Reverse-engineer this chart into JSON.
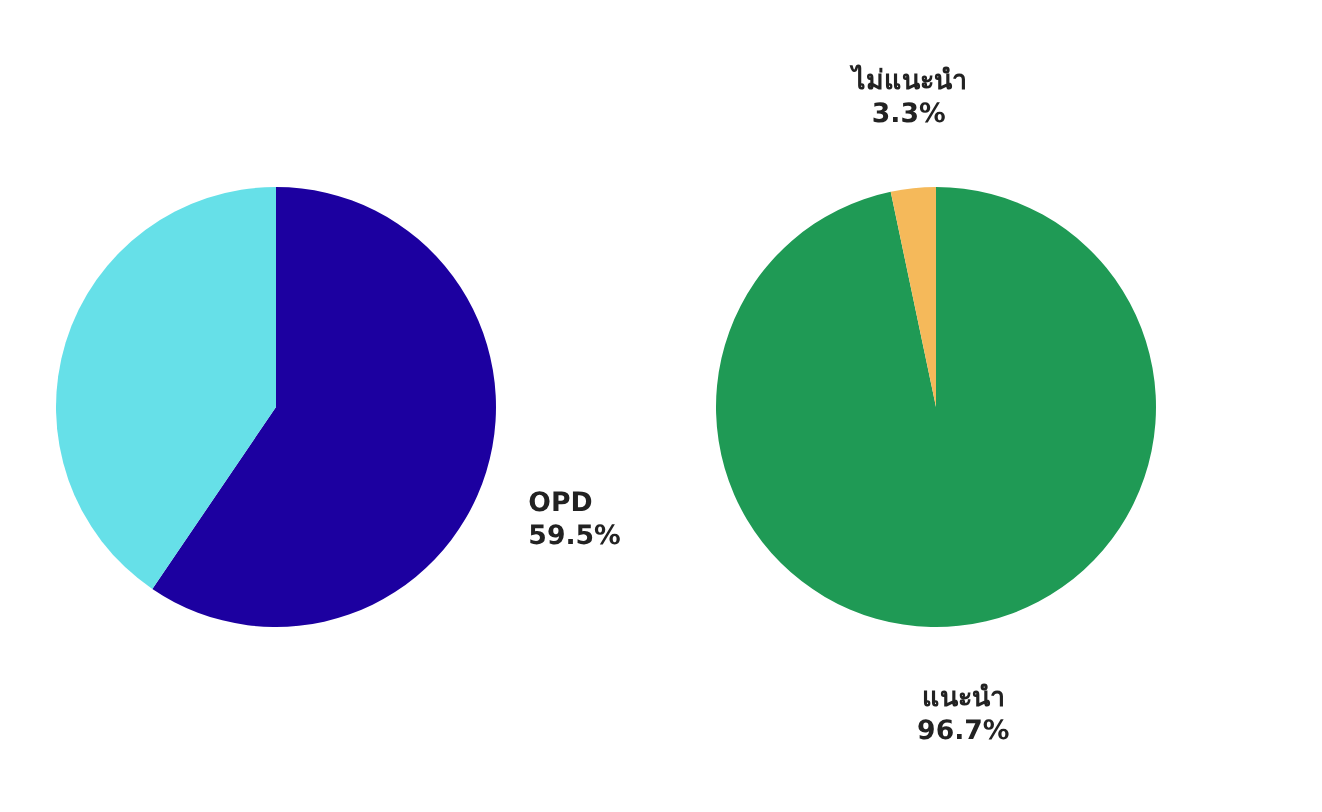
{
  "chart_data": [
    {
      "type": "pie",
      "categories": [
        "OPD",
        null
      ],
      "values": [
        59.5,
        40.5
      ],
      "colors": [
        "#1c00a0",
        "#66e0e8"
      ],
      "value_labels": [
        "59.5%",
        null
      ]
    },
    {
      "type": "pie",
      "categories": [
        "แนะนำ",
        "ไม่แนะนำ"
      ],
      "values": [
        96.7,
        3.3
      ],
      "colors": [
        "#1f9a55",
        "#f5b95a"
      ],
      "value_labels": [
        "96.7%",
        "3.3%"
      ]
    }
  ]
}
